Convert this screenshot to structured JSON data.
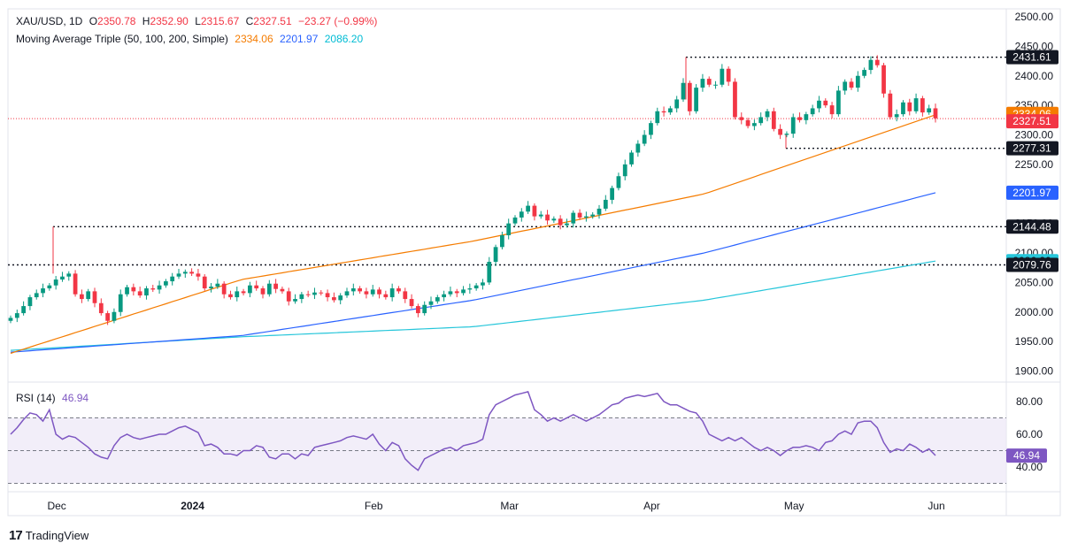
{
  "header": {
    "symbol": "XAU/USD, 1D",
    "o_label": "O",
    "o": "2350.78",
    "h_label": "H",
    "h": "2352.90",
    "l_label": "L",
    "l": "2315.67",
    "c_label": "C",
    "c": "2327.51",
    "change": "−23.27 (−0.99%)",
    "ma_title": "Moving Average Triple (50, 100, 200, Simple)",
    "ma50": "2334.06",
    "ma100": "2201.97",
    "ma200": "2086.20"
  },
  "rsi_header": {
    "title": "RSI (14)",
    "value": "46.94"
  },
  "colors": {
    "up": "#089981",
    "down": "#f23645",
    "ma50": "#f57c00",
    "ma100": "#2962ff",
    "ma200": "#26c6da",
    "rsi": "#7e57c2",
    "rsi_band": "#ede7f6",
    "axis_text": "#131722",
    "grid_border": "#e0e3eb",
    "current_price_line": "#f23645"
  },
  "footer": {
    "brand": "TradingView"
  },
  "chart_data": [
    {
      "type": "candlestick",
      "title": "XAU/USD, 1D",
      "y_ticks": [
        "2500.00",
        "2450.00",
        "2400.00",
        "2350.00",
        "2300.00",
        "2250.00",
        "2200.00",
        "2150.00",
        "2100.00",
        "2050.00",
        "2000.00",
        "1950.00",
        "1900.00"
      ],
      "ylim": [
        1890,
        2505
      ],
      "x_ticks": [
        "Dec",
        "2024",
        "Feb",
        "Mar",
        "Apr",
        "May",
        "Jun"
      ],
      "price_labels": [
        {
          "label": "2431.61",
          "value": 2431.61,
          "style": "dark",
          "line": "dotted"
        },
        {
          "label": "2334.06",
          "value": 2334.06,
          "style": "orange",
          "line": "none"
        },
        {
          "label": "2327.51",
          "value": 2327.51,
          "style": "red",
          "line": "dotted-red"
        },
        {
          "label": "2277.31",
          "value": 2277.31,
          "style": "dark",
          "line": "dotted"
        },
        {
          "label": "2201.97",
          "value": 2201.97,
          "style": "blue",
          "line": "none"
        },
        {
          "label": "2144.48",
          "value": 2144.48,
          "style": "dark",
          "line": "dotted"
        },
        {
          "label": "2086.20",
          "value": 2086.2,
          "style": "cyan",
          "line": "none"
        },
        {
          "label": "2079.76",
          "value": 2079.76,
          "style": "dark",
          "line": "dotted"
        }
      ],
      "closes": [
        1990,
        1998,
        2010,
        2025,
        2032,
        2040,
        2045,
        2055,
        2060,
        2065,
        2030,
        2022,
        2035,
        2015,
        1998,
        1985,
        2000,
        2030,
        2042,
        2035,
        2028,
        2040,
        2038,
        2045,
        2052,
        2060,
        2065,
        2068,
        2065,
        2060,
        2040,
        2043,
        2048,
        2030,
        2025,
        2035,
        2032,
        2045,
        2040,
        2030,
        2048,
        2039,
        2035,
        2018,
        2022,
        2030,
        2029,
        2033,
        2032,
        2025,
        2020,
        2028,
        2035,
        2040,
        2035,
        2030,
        2038,
        2030,
        2025,
        2040,
        2035,
        2022,
        2010,
        1998,
        2012,
        2018,
        2025,
        2030,
        2035,
        2032,
        2038,
        2040,
        2045,
        2050,
        2085,
        2110,
        2130,
        2150,
        2160,
        2170,
        2180,
        2162,
        2165,
        2155,
        2158,
        2147,
        2150,
        2168,
        2160,
        2162,
        2165,
        2175,
        2190,
        2210,
        2230,
        2250,
        2270,
        2285,
        2300,
        2320,
        2340,
        2338,
        2345,
        2360,
        2388,
        2340,
        2380,
        2395,
        2385,
        2385,
        2412,
        2390,
        2330,
        2325,
        2315,
        2320,
        2330,
        2340,
        2310,
        2300,
        2302,
        2330,
        2325,
        2335,
        2345,
        2358,
        2350,
        2335,
        2375,
        2390,
        2380,
        2400,
        2410,
        2427,
        2418,
        2370,
        2330,
        2335,
        2355,
        2340,
        2362,
        2338,
        2345,
        2328
      ],
      "ma50": [
        1930,
        2055,
        2120,
        2200,
        2334.06
      ],
      "ma100": [
        1932,
        1960,
        2020,
        2100,
        2201.97
      ],
      "ma200": [
        1935,
        1958,
        1975,
        2020,
        2086.2
      ]
    },
    {
      "type": "line",
      "title": "RSI (14)",
      "y_ticks": [
        "80.00",
        "60.00",
        "40.00"
      ],
      "ylim": [
        25,
        90
      ],
      "bands": [
        70,
        50,
        30
      ],
      "last_value": 46.94,
      "values": [
        60,
        64,
        69,
        73,
        72,
        68,
        75,
        60,
        57,
        59,
        58,
        55,
        52,
        48,
        46,
        45,
        53,
        58,
        60,
        58,
        57,
        58,
        59,
        60,
        60,
        62,
        64,
        65,
        63,
        61,
        53,
        54,
        52,
        48,
        48,
        47,
        50,
        50,
        53,
        52,
        46,
        45,
        48,
        48,
        45,
        48,
        47,
        52,
        53,
        54,
        55,
        56,
        58,
        59,
        58,
        57,
        60,
        54,
        50,
        55,
        53,
        45,
        41,
        38,
        45,
        47,
        49,
        51,
        52,
        50,
        53,
        54,
        55,
        57,
        72,
        78,
        80,
        82,
        84,
        85,
        86,
        75,
        72,
        68,
        70,
        68,
        70,
        72,
        70,
        68,
        70,
        72,
        75,
        78,
        79,
        82,
        83,
        84,
        83,
        84,
        85,
        80,
        78,
        78,
        76,
        74,
        73,
        68,
        60,
        58,
        56,
        58,
        56,
        58,
        55,
        52,
        50,
        52,
        50,
        47,
        50,
        52,
        52,
        53,
        52,
        50,
        55,
        56,
        60,
        62,
        60,
        67,
        68,
        68,
        64,
        55,
        49,
        51,
        50,
        54,
        52,
        49,
        51,
        47
      ]
    }
  ]
}
